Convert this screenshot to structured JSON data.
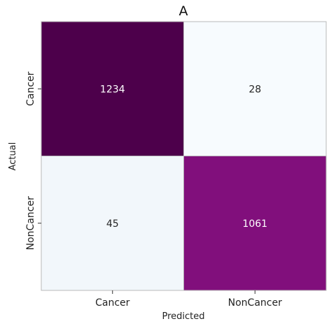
{
  "chart_data": {
    "type": "heatmap",
    "title": "A",
    "xlabel": "Predicted",
    "ylabel": "Actual",
    "x_categories": [
      "Cancer",
      "NonCancer"
    ],
    "y_categories": [
      "Cancer",
      "NonCancer"
    ],
    "values": [
      [
        1234,
        28
      ],
      [
        45,
        1061
      ]
    ],
    "colormap": "BuPu",
    "colorbar": false,
    "grid": false,
    "cell_colors": [
      [
        "#4d004b",
        "#f7fbfe"
      ],
      [
        "#f2f7fb",
        "#810f7c"
      ]
    ],
    "text_colors": [
      [
        "#ffffff",
        "#262626"
      ],
      [
        "#262626",
        "#ffffff"
      ]
    ]
  }
}
